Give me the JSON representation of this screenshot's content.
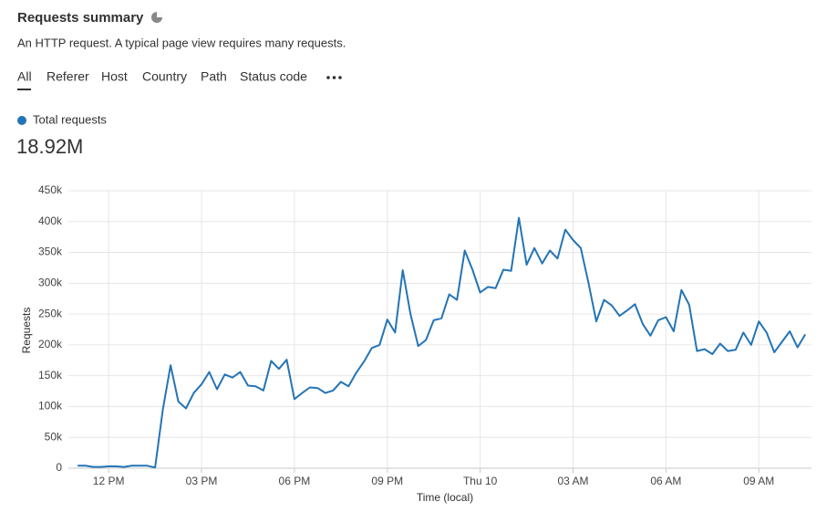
{
  "header": {
    "title": "Requests summary",
    "subtitle": "An HTTP request. A typical page view requires many requests."
  },
  "tabs": [
    "All",
    "Referer",
    "Host",
    "Country",
    "Path",
    "Status code"
  ],
  "summary": {
    "label": "Total requests",
    "total": "18.92M"
  },
  "chart_data": {
    "type": "line",
    "xlabel": "Time (local)",
    "ylabel": "Requests",
    "x": [
      11,
      11.25,
      11.5,
      11.75,
      12,
      12.25,
      12.5,
      12.75,
      13,
      13.25,
      13.5,
      13.75,
      14,
      14.25,
      14.5,
      14.75,
      15,
      15.25,
      15.5,
      15.75,
      16,
      16.25,
      16.5,
      16.75,
      17,
      17.25,
      17.5,
      17.75,
      18,
      18.25,
      18.5,
      18.75,
      19,
      19.25,
      19.5,
      19.75,
      20,
      20.25,
      20.5,
      20.75,
      21,
      21.25,
      21.5,
      21.75,
      22,
      22.25,
      22.5,
      22.75,
      23,
      23.25,
      23.5,
      23.75,
      24,
      24.25,
      24.5,
      24.75,
      25,
      25.25,
      25.5,
      25.75,
      26,
      26.25,
      26.5,
      26.75,
      27,
      27.25,
      27.5,
      27.75,
      28,
      28.25,
      28.5,
      28.75,
      29,
      29.25,
      29.5,
      29.75,
      30,
      30.25,
      30.5,
      30.75,
      31,
      31.25,
      31.5,
      31.75,
      32,
      32.25,
      32.5,
      32.75,
      33,
      33.25,
      33.5,
      33.75,
      34,
      34.25,
      34.5
    ],
    "series": [
      {
        "name": "Total requests",
        "color": "#2474b5",
        "values": [
          4000,
          4000,
          2000,
          2000,
          3000,
          3000,
          2000,
          4000,
          4000,
          4000,
          1000,
          95000,
          167000,
          108000,
          97000,
          122000,
          136000,
          156000,
          128000,
          152000,
          147000,
          156000,
          134000,
          133000,
          126000,
          174000,
          161000,
          176000,
          112000,
          122000,
          131000,
          130000,
          122000,
          126000,
          140000,
          133000,
          155000,
          173000,
          195000,
          200000,
          241000,
          220000,
          321000,
          250000,
          198000,
          208000,
          240000,
          243000,
          282000,
          273000,
          353000,
          322000,
          285000,
          294000,
          292000,
          322000,
          320000,
          406000,
          330000,
          357000,
          332000,
          353000,
          340000,
          387000,
          370000,
          357000,
          300000,
          238000,
          273000,
          264000,
          247000,
          256000,
          266000,
          234000,
          215000,
          240000,
          245000,
          222000,
          289000,
          265000,
          190000,
          193000,
          185000,
          202000,
          190000,
          192000,
          220000,
          200000,
          238000,
          220000,
          188000,
          205000,
          222000,
          196000,
          217000
        ]
      }
    ],
    "xlim": [
      10.7,
      34.7
    ],
    "xticks": [
      {
        "value": 12,
        "label": "12 PM"
      },
      {
        "value": 15,
        "label": "03 PM"
      },
      {
        "value": 18,
        "label": "06 PM"
      },
      {
        "value": 21,
        "label": "09 PM"
      },
      {
        "value": 24,
        "label": "Thu 10"
      },
      {
        "value": 27,
        "label": "03 AM"
      },
      {
        "value": 30,
        "label": "06 AM"
      },
      {
        "value": 33,
        "label": "09 AM"
      }
    ],
    "ylim": [
      0,
      450000
    ],
    "yticks": [
      0,
      {
        "value": 50000,
        "label": "50k"
      },
      {
        "value": 100000,
        "label": "100k"
      },
      {
        "value": 150000,
        "label": "150k"
      },
      {
        "value": 200000,
        "label": "200k"
      },
      {
        "value": 250000,
        "label": "250k"
      },
      {
        "value": 300000,
        "label": "300k"
      },
      {
        "value": 350000,
        "label": "350k"
      },
      {
        "value": 400000,
        "label": "400k"
      },
      {
        "value": 450000,
        "label": "450k"
      }
    ],
    "grid": true
  }
}
